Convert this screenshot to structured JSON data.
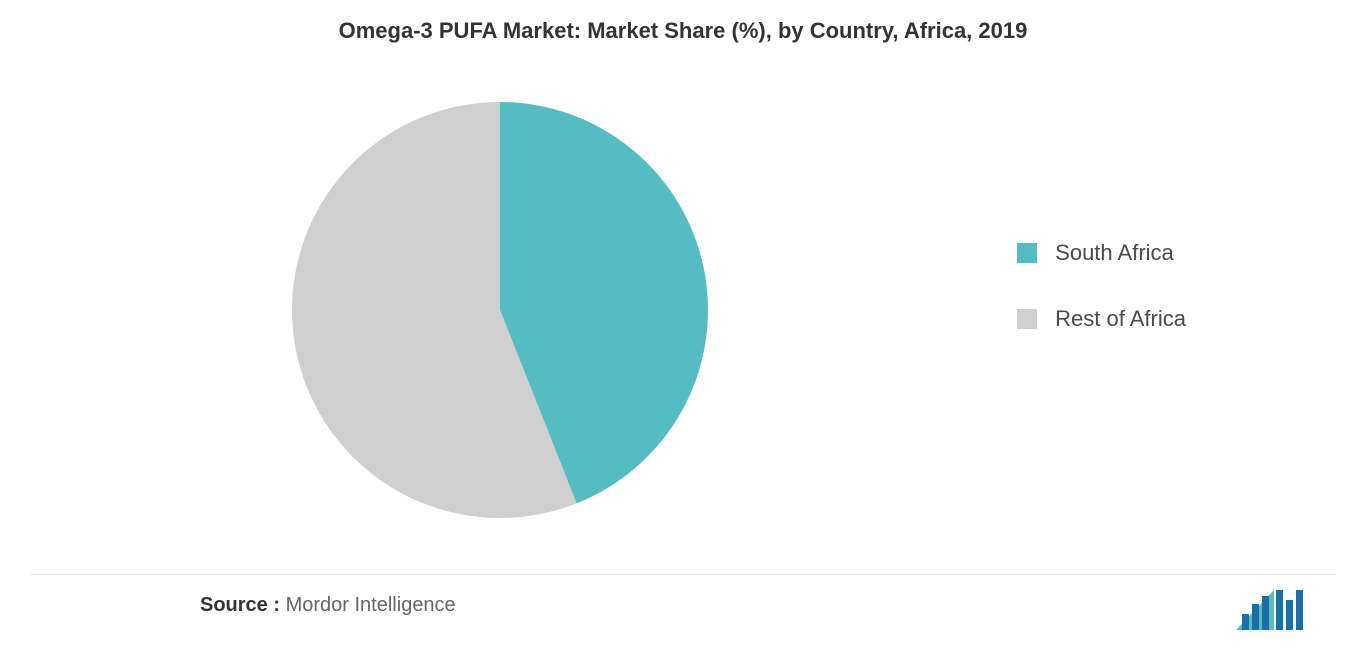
{
  "title": "Omega-3 PUFA Market: Market Share (%), by Country, Africa, 2019",
  "chart": {
    "type": "pie",
    "background_color": "#ffffff",
    "slices": [
      {
        "label": "South Africa",
        "value": 44,
        "color": "#55bcc3"
      },
      {
        "label": "Rest of Africa",
        "value": 56,
        "color": "#cfcfcf"
      }
    ],
    "pie_radius": 208,
    "title_fontsize": 22,
    "title_color": "#333333",
    "legend_fontsize": 22,
    "legend_label_color": "#4a4a4a"
  },
  "source": {
    "label": "Source :",
    "value": "Mordor Intelligence",
    "label_color": "#333333",
    "value_color": "#666666",
    "fontsize": 20
  },
  "logo": {
    "bar_color": "#1d6ea8",
    "triangle_color": "#57bcc4"
  }
}
